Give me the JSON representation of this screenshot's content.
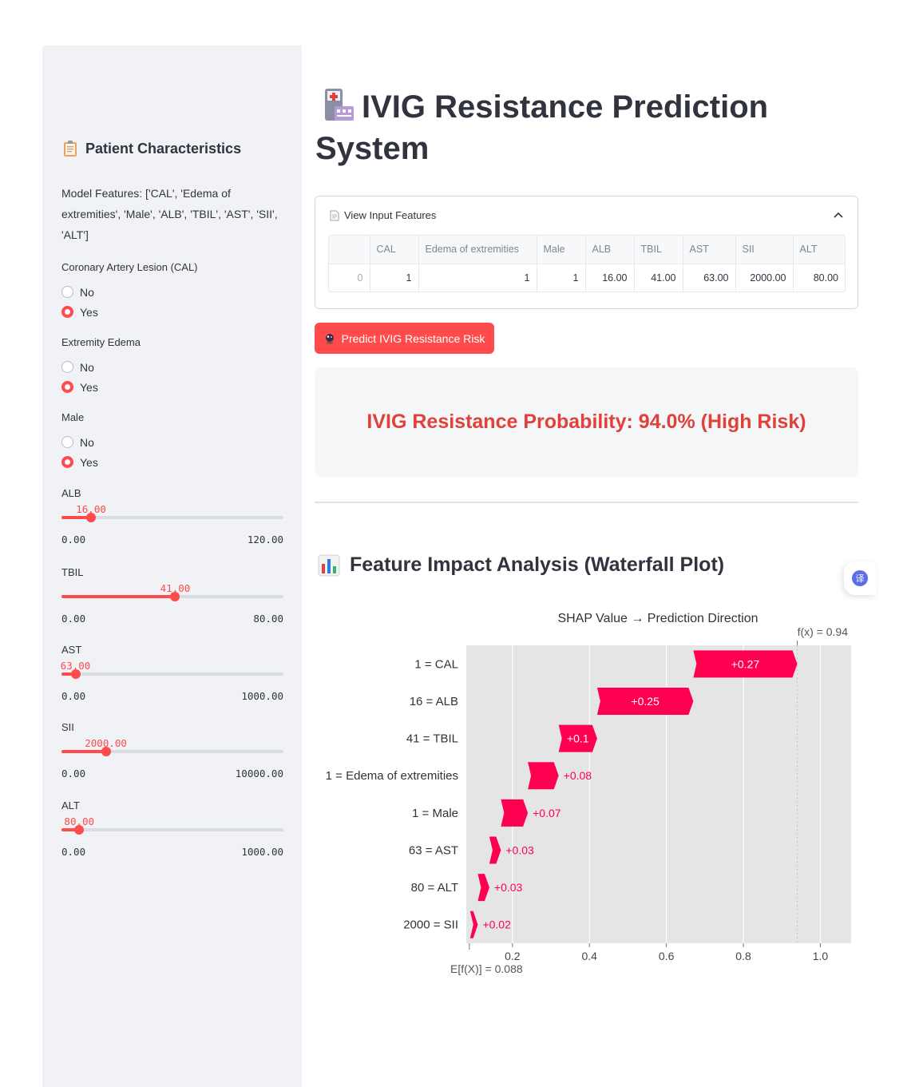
{
  "sidebar": {
    "title": "Patient Characteristics",
    "features_text": "Model Features: ['CAL', 'Edema of extremities', 'Male', 'ALB', 'TBIL', 'AST', 'SII', 'ALT']",
    "radios": [
      {
        "label": "Coronary Artery Lesion (CAL)",
        "options": [
          "No",
          "Yes"
        ],
        "selected": "Yes"
      },
      {
        "label": "Extremity Edema",
        "options": [
          "No",
          "Yes"
        ],
        "selected": "Yes"
      },
      {
        "label": "Male",
        "options": [
          "No",
          "Yes"
        ],
        "selected": "Yes"
      }
    ],
    "sliders": [
      {
        "label": "ALB",
        "value": 16.0,
        "value_text": "16.00",
        "min_text": "0.00",
        "max_text": "120.00",
        "min": 0,
        "max": 120
      },
      {
        "label": "TBIL",
        "value": 41.0,
        "value_text": "41.00",
        "min_text": "0.00",
        "max_text": "80.00",
        "min": 0,
        "max": 80
      },
      {
        "label": "AST",
        "value": 63.0,
        "value_text": "63.00",
        "min_text": "0.00",
        "max_text": "1000.00",
        "min": 0,
        "max": 1000
      },
      {
        "label": "SII",
        "value": 2000.0,
        "value_text": "2000.00",
        "min_text": "0.00",
        "max_text": "10000.00",
        "min": 0,
        "max": 10000
      },
      {
        "label": "ALT",
        "value": 80.0,
        "value_text": "80.00",
        "min_text": "0.00",
        "max_text": "1000.00",
        "min": 0,
        "max": 1000
      }
    ]
  },
  "main": {
    "title": "IVIG Resistance Prediction System",
    "expander_label": "View Input Features",
    "table": {
      "columns": [
        "",
        "CAL",
        "Edema of extremities",
        "Male",
        "ALB",
        "TBIL",
        "AST",
        "SII",
        "ALT"
      ],
      "rows": [
        [
          "0",
          "1",
          "1",
          "1",
          "16.00",
          "41.00",
          "63.00",
          "2000.00",
          "80.00"
        ]
      ]
    },
    "predict_label": "Predict IVIG Resistance Risk",
    "result_text": "IVIG Resistance Probability: 94.0% (High Risk)",
    "section_title": "Feature Impact Analysis (Waterfall Plot)",
    "float_icon_label": "译"
  },
  "colors": {
    "accent": "#ff4b4b",
    "shap_positive": "#ff0051",
    "result": "#e0413a"
  },
  "chart_data": {
    "type": "waterfall",
    "title": "SHAP Value → Prediction Direction",
    "base_value": 0.088,
    "base_label": "E[f(X)] = 0.088",
    "fx_value": 0.94,
    "fx_label": "f(x) = 0.94",
    "xlim": [
      0.08,
      1.08
    ],
    "xticks": [
      0.2,
      0.4,
      0.6,
      0.8,
      1.0
    ],
    "xtick_labels": [
      "0.2",
      "0.4",
      "0.6",
      "0.8",
      "1.0"
    ],
    "features": [
      {
        "label": "1 = CAL",
        "value": 0.27,
        "text": "+0.27"
      },
      {
        "label": "16 = ALB",
        "value": 0.25,
        "text": "+0.25"
      },
      {
        "label": "41 = TBIL",
        "value": 0.1,
        "text": "+0.1"
      },
      {
        "label": "1 = Edema of extremities",
        "value": 0.08,
        "text": "+0.08"
      },
      {
        "label": "1 = Male",
        "value": 0.07,
        "text": "+0.07"
      },
      {
        "label": "63 = AST",
        "value": 0.03,
        "text": "+0.03"
      },
      {
        "label": "80 = ALT",
        "value": 0.03,
        "text": "+0.03"
      },
      {
        "label": "2000 = SII",
        "value": 0.02,
        "text": "+0.02"
      }
    ]
  }
}
